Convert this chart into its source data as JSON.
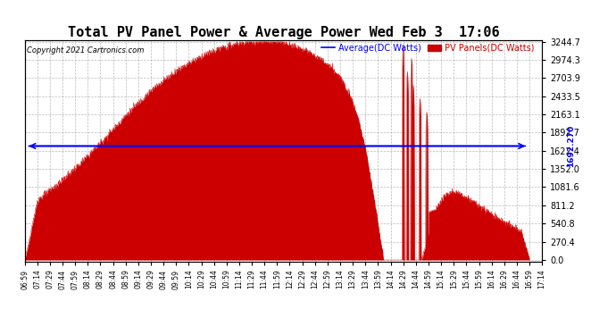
{
  "title": "Total PV Panel Power & Average Power Wed Feb 3  17:06",
  "copyright": "Copyright 2021 Cartronics.com",
  "legend_avg": "Average(DC Watts)",
  "legend_pv": "PV Panels(DC Watts)",
  "avg_line_value": 1692.27,
  "yticks": [
    0.0,
    270.4,
    540.8,
    811.2,
    1081.6,
    1352.0,
    1622.4,
    1892.7,
    2163.1,
    2433.5,
    2703.9,
    2974.3,
    3244.7
  ],
  "ymax": 3244.7,
  "ymin": 0.0,
  "bg_color": "#ffffff",
  "fill_color": "#cc0000",
  "avg_color": "#0000ff",
  "grid_color": "#aaaaaa",
  "title_fontsize": 11,
  "xtick_fontsize": 5.5,
  "ytick_fontsize": 7,
  "copyright_fontsize": 6,
  "legend_fontsize": 7
}
